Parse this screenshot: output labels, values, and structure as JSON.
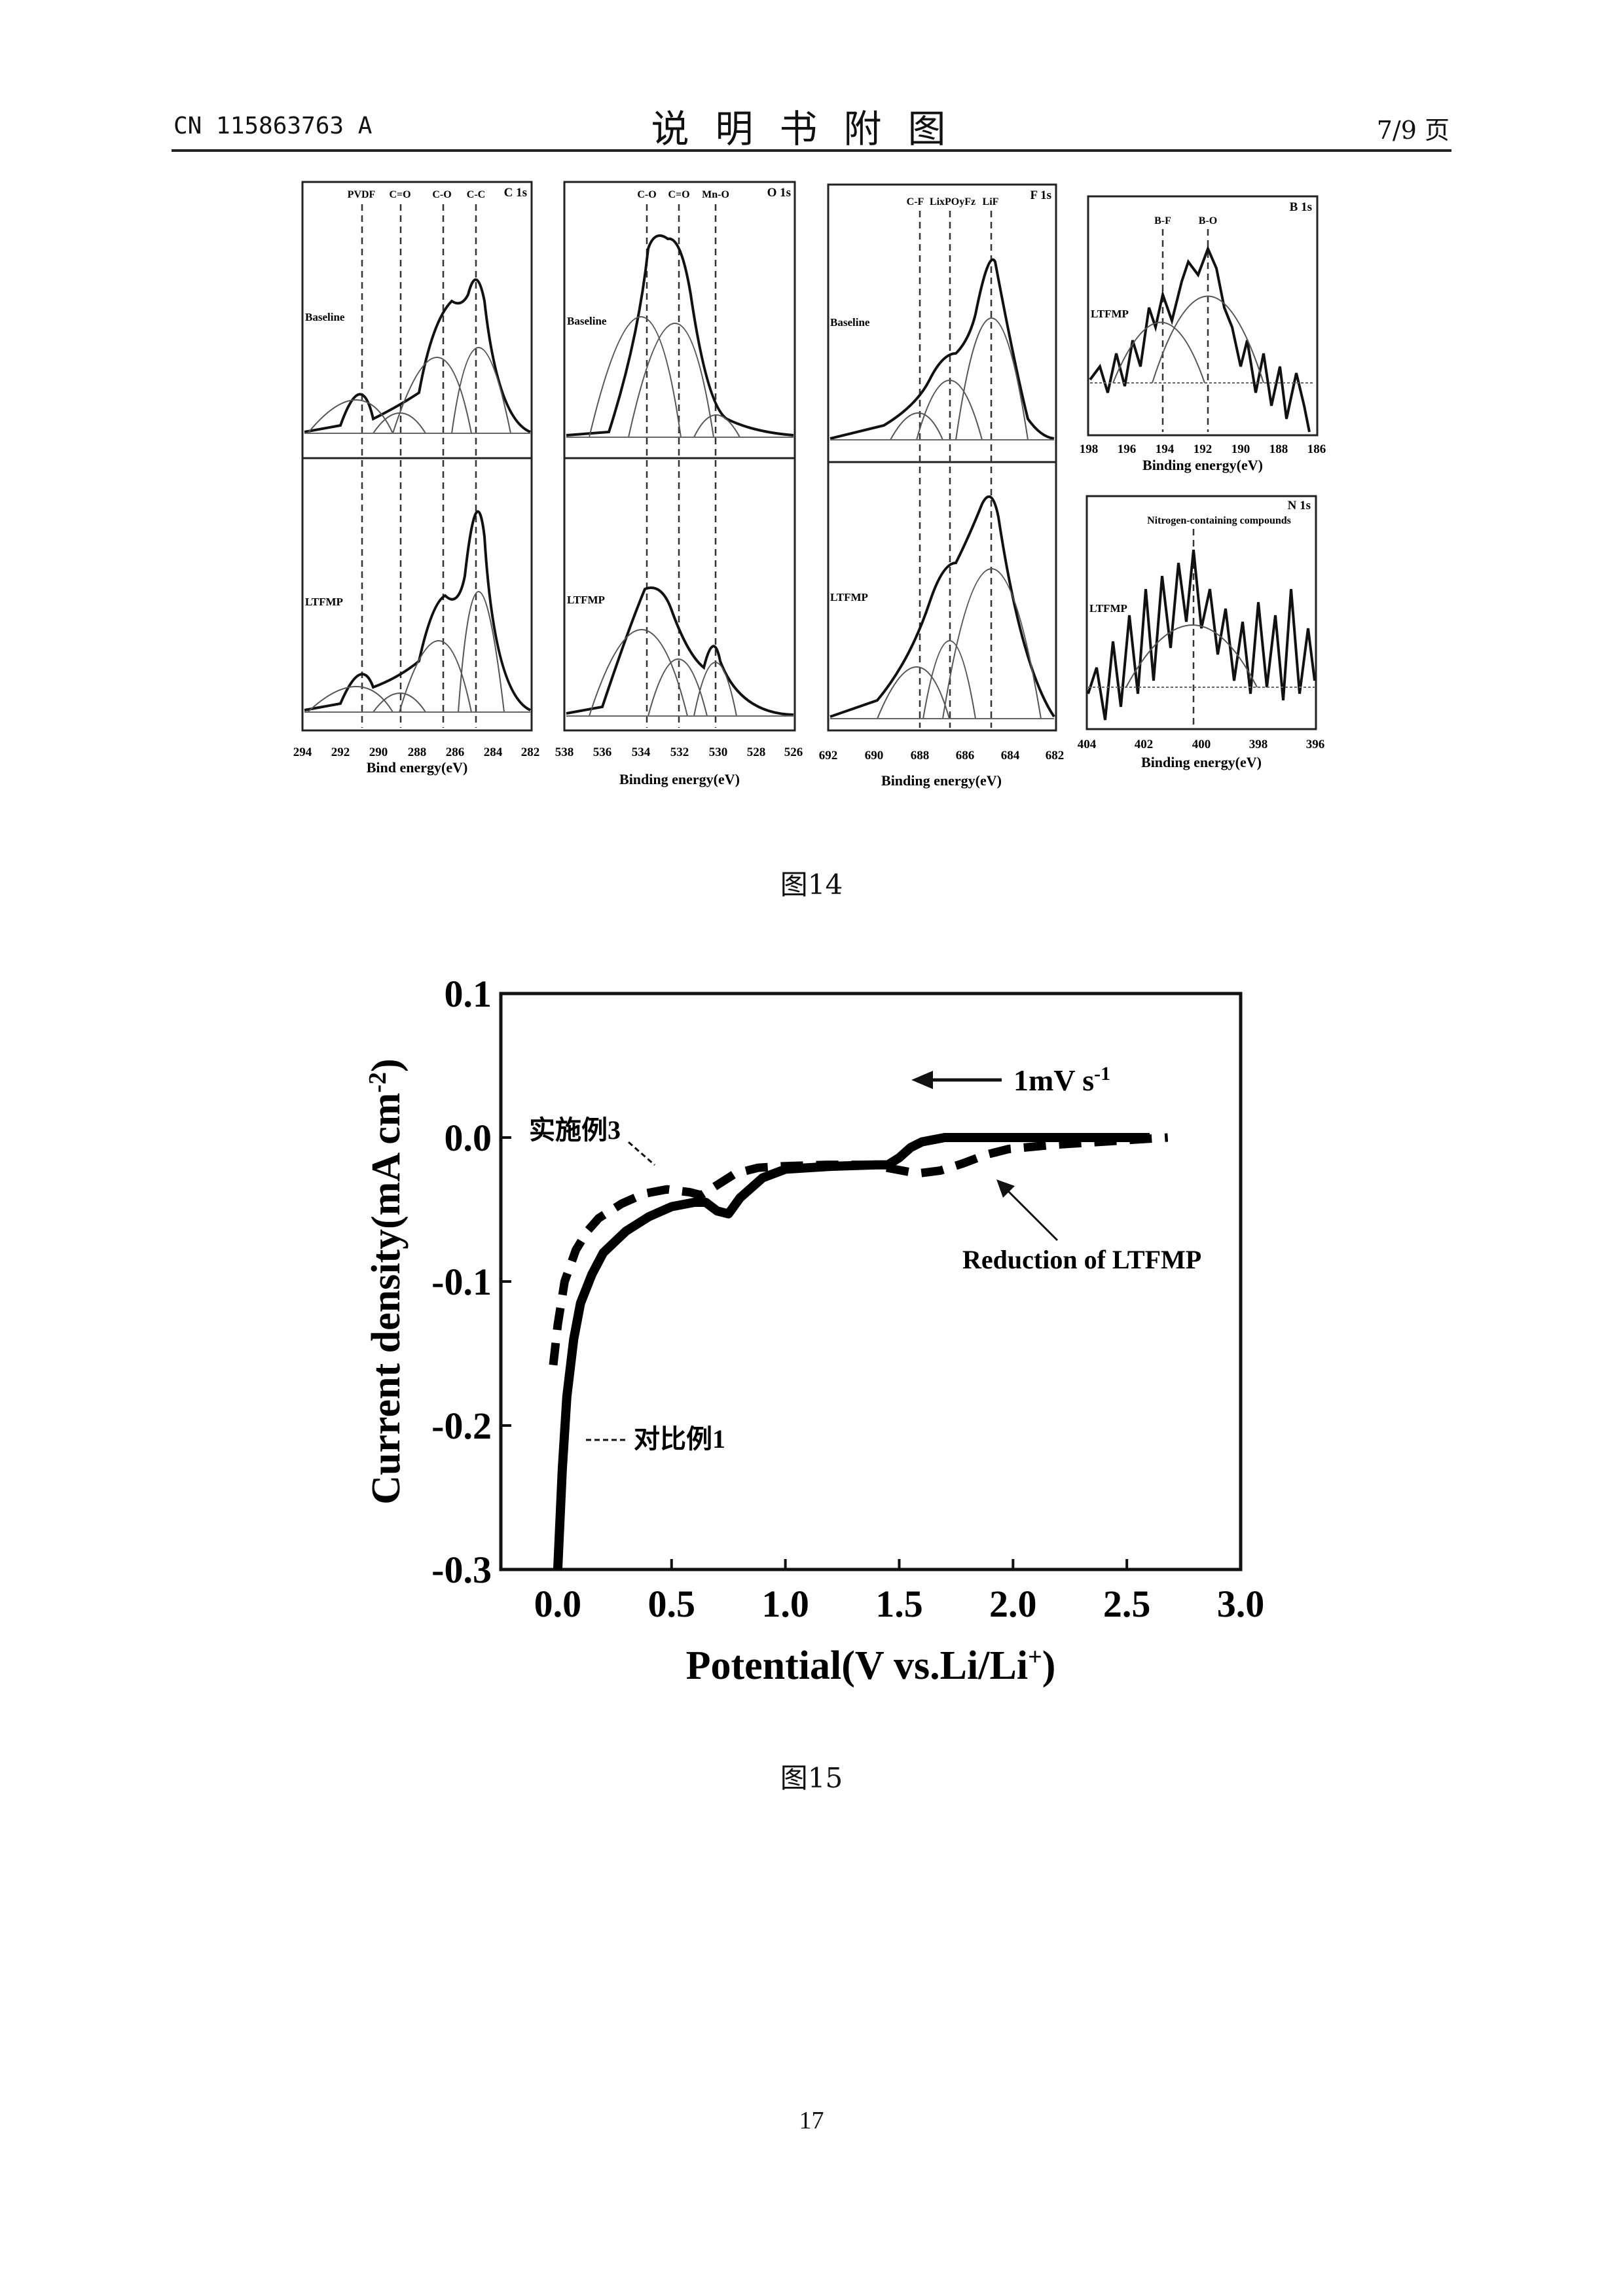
{
  "header": {
    "doc_no": "CN 115863763 A",
    "title": "说明书附图",
    "page_of": "7/9 页"
  },
  "figure14": {
    "caption": "图14",
    "panels": [
      {
        "id": "c1s",
        "label": "C 1s",
        "peaks": [
          "PVDF",
          "C=O",
          "C-O",
          "C-C"
        ],
        "samples": [
          "Baseline",
          "LTFMP"
        ],
        "ticks": [
          "294",
          "292",
          "290",
          "288",
          "286",
          "284",
          "282"
        ],
        "xlabel": "Bind energy(eV)"
      },
      {
        "id": "o1s",
        "label": "O 1s",
        "peaks": [
          "C-O",
          "C=O",
          "Mn-O"
        ],
        "samples": [
          "Baseline",
          "LTFMP"
        ],
        "ticks": [
          "538",
          "536",
          "534",
          "532",
          "530",
          "528",
          "526"
        ],
        "xlabel": "Binding energy(eV)"
      },
      {
        "id": "f1s",
        "label": "F 1s",
        "peaks": [
          "C-F",
          "LixPOyFz",
          "LiF"
        ],
        "samples": [
          "Baseline",
          "LTFMP"
        ],
        "ticks": [
          "692",
          "690",
          "688",
          "686",
          "684",
          "682"
        ],
        "xlabel": "Binding energy(eV)"
      },
      {
        "id": "b1s",
        "label": "B 1s",
        "peaks": [
          "B-F",
          "B-O"
        ],
        "samples": [
          "LTFMP"
        ],
        "ticks": [
          "198",
          "196",
          "194",
          "192",
          "190",
          "188",
          "186"
        ],
        "xlabel": "Binding energy(eV)"
      },
      {
        "id": "n1s",
        "label": "N 1s",
        "annotation": "Nitrogen-containing compounds",
        "samples": [
          "LTFMP"
        ],
        "ticks": [
          "404",
          "402",
          "400",
          "398",
          "396"
        ],
        "xlabel": "Binding energy(eV)"
      }
    ]
  },
  "figure15": {
    "caption": "图15",
    "chart_data": {
      "type": "line",
      "title": "",
      "xlabel": "Potential(V vs.Li/Li+)",
      "ylabel": "Current density(mA cm-2)",
      "xlim": [
        -0.25,
        3.0
      ],
      "ylim": [
        -0.3,
        0.1
      ],
      "xticks": [
        "0.0",
        "0.5",
        "1.0",
        "1.5",
        "2.0",
        "2.5",
        "3.0"
      ],
      "yticks": [
        "0.1",
        "0.0",
        "-0.1",
        "-0.2",
        "-0.3"
      ],
      "scan_rate": "1mV s-1",
      "annotation": "Reduction of LTFMP",
      "series": [
        {
          "name": "对比例1",
          "style": "solid",
          "x": [
            0.0,
            0.02,
            0.04,
            0.07,
            0.1,
            0.15,
            0.2,
            0.3,
            0.4,
            0.5,
            0.6,
            0.65,
            0.7,
            0.75,
            0.8,
            0.9,
            1.0,
            1.2,
            1.4,
            1.45,
            1.5,
            1.55,
            1.6,
            1.7,
            2.0,
            2.3,
            2.6
          ],
          "y": [
            -0.3,
            -0.23,
            -0.18,
            -0.14,
            -0.115,
            -0.095,
            -0.08,
            -0.065,
            -0.055,
            -0.048,
            -0.045,
            -0.045,
            -0.051,
            -0.053,
            -0.042,
            -0.028,
            -0.022,
            -0.02,
            -0.019,
            -0.019,
            -0.014,
            -0.007,
            -0.003,
            0.0,
            0.0,
            0.0,
            0.0
          ]
        },
        {
          "name": "实施例3",
          "style": "dashed",
          "x": [
            0.0,
            0.02,
            0.05,
            0.1,
            0.15,
            0.2,
            0.3,
            0.4,
            0.5,
            0.6,
            0.65,
            0.7,
            0.8,
            0.9,
            1.0,
            1.2,
            1.4,
            1.5,
            1.6,
            1.7,
            1.8,
            1.9,
            2.0,
            2.2,
            2.4,
            2.6,
            2.7
          ],
          "y": [
            -0.158,
            -0.13,
            -0.1,
            -0.078,
            -0.065,
            -0.056,
            -0.046,
            -0.039,
            -0.036,
            -0.038,
            -0.04,
            -0.035,
            -0.025,
            -0.021,
            -0.02,
            -0.019,
            -0.019,
            -0.022,
            -0.025,
            -0.023,
            -0.018,
            -0.012,
            -0.008,
            -0.005,
            -0.003,
            -0.001,
            0.0
          ]
        }
      ]
    }
  },
  "page_number": "17"
}
